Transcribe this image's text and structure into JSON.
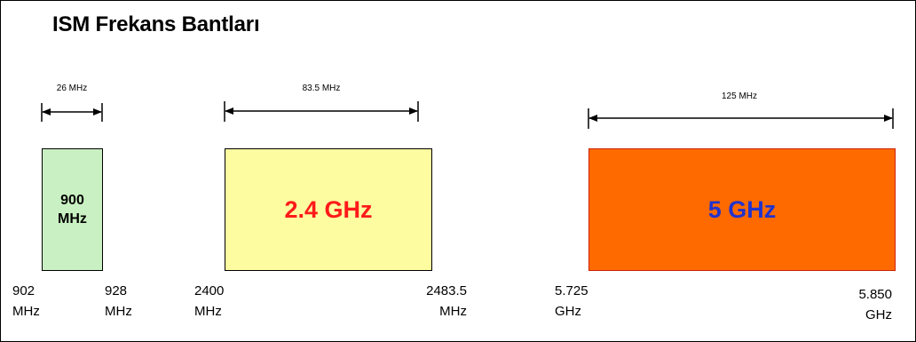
{
  "title": "ISM Frekans Bantları",
  "bands": [
    {
      "id": "900",
      "label_line1": "900",
      "label_line2": "MHz",
      "bandwidth_label": "26 MHz",
      "start_line1": "902",
      "start_line2": "MHz",
      "end_line1": "928",
      "end_line2": "MHz",
      "fill_color": "#c9f0c2",
      "text_color": "#000000"
    },
    {
      "id": "2.4",
      "label": "2.4 GHz",
      "bandwidth_label": "83.5 MHz",
      "start_line1": "2400",
      "start_line2": "MHz",
      "end_line1": "2483.5",
      "end_line2": "MHz",
      "fill_color": "#fdfca0",
      "text_color": "#ff1a1a"
    },
    {
      "id": "5",
      "label": "5 GHz",
      "bandwidth_label": "125 MHz",
      "start_line1": "5.725",
      "start_line2": "GHz",
      "end_line1": "5.850",
      "end_line2": "GHz",
      "fill_color": "#ff6a00",
      "text_color": "#2233cc"
    }
  ]
}
